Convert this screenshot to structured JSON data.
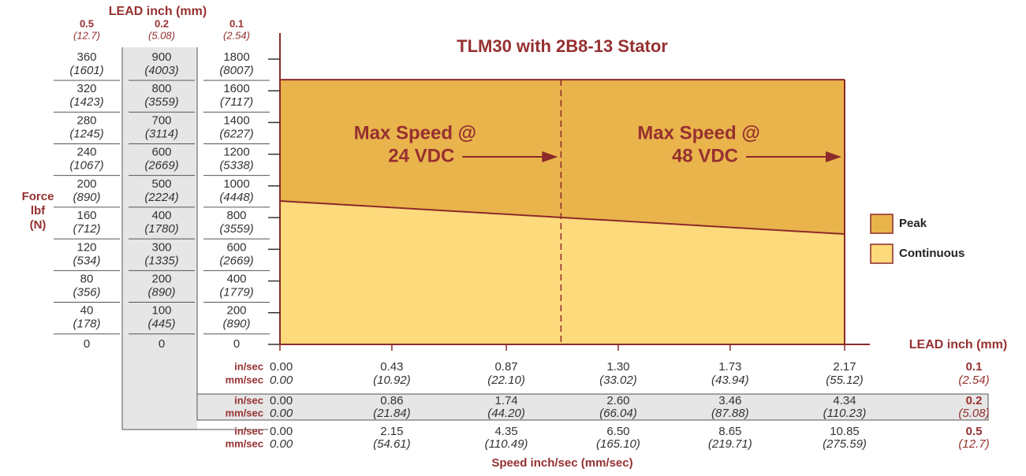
{
  "chart_data": {
    "type": "area",
    "title": "TLM30 with 2B8-13 Stator",
    "y_label": [
      "Force",
      "lbf",
      "(N)"
    ],
    "y_lead_header": "LEAD  inch (mm)",
    "ylim": [
      0,
      1800
    ],
    "yticks": [
      0,
      200,
      400,
      600,
      800,
      1000,
      1200,
      1400,
      1600,
      1800
    ],
    "y_columns": [
      {
        "lead": "0.5",
        "lead_mm": "(12.7)",
        "lbf": [
          "0",
          "40",
          "80",
          "120",
          "160",
          "200",
          "240",
          "280",
          "320",
          "360"
        ],
        "n": [
          null,
          "(178)",
          "(356)",
          "(534)",
          "(712)",
          "(890)",
          "(1067)",
          "(1245)",
          "(1423)",
          "(1601)"
        ]
      },
      {
        "lead": "0.2",
        "lead_mm": "(5.08)",
        "lbf": [
          "0",
          "100",
          "200",
          "300",
          "400",
          "500",
          "600",
          "700",
          "800",
          "900"
        ],
        "n": [
          null,
          "(445)",
          "(890)",
          "(1335)",
          "(1780)",
          "(2224)",
          "(2669)",
          "(3114)",
          "(3559)",
          "(4003)"
        ]
      },
      {
        "lead": "0.1",
        "lead_mm": "(2.54)",
        "n": [
          null,
          "(890)",
          "(1779)",
          "(2669)",
          "(3559)",
          "(4448)",
          "(5338)",
          "(6227)",
          "(7117)",
          "(8007)"
        ]
      }
    ],
    "xlim": [
      0,
      2.17
    ],
    "xticks": [
      {
        "value": 0,
        "label": "0.00"
      },
      {
        "value": 0.43,
        "label": "0.43"
      },
      {
        "value": 0.87,
        "label": "0.87"
      },
      {
        "value": 1.3,
        "label": "1.30"
      },
      {
        "value": 1.73,
        "label": "1.73"
      },
      {
        "value": 2.17,
        "label": "2.17"
      }
    ],
    "x_rows": [
      {
        "unit_in": "in/sec",
        "unit_mm": "mm/sec",
        "lead": "0.1",
        "lead_mm": "(2.54)",
        "mm": [
          "0.00",
          "(10.92)",
          "(22.10)",
          "(33.02)",
          "(43.94)",
          "(55.12)"
        ]
      },
      {
        "unit_in": "in/sec",
        "unit_mm": "mm/sec",
        "lead": "0.2",
        "lead_mm": "(5.08)",
        "in": [
          "0.00",
          "0.86",
          "1.74",
          "2.60",
          "3.46",
          "4.34"
        ],
        "mm": [
          "0.00",
          "(21.84)",
          "(44.20)",
          "(66.04)",
          "(87.88)",
          "(110.23)"
        ]
      },
      {
        "unit_in": "in/sec",
        "unit_mm": "mm/sec",
        "lead": "0.5",
        "lead_mm": "(12.7)",
        "in": [
          "0.00",
          "2.15",
          "4.35",
          "6.50",
          "8.65",
          "10.85"
        ],
        "mm": [
          "0.00",
          "(54.61)",
          "(110.49)",
          "(165.10)",
          "(219.71)",
          "(275.59)"
        ]
      }
    ],
    "x_lead_header": "LEAD inch (mm)",
    "x_label": "Speed inch/sec (mm/sec)",
    "series": [
      {
        "name": "Peak",
        "color": "#e9b44c",
        "x": [
          0,
          2.17
        ],
        "values": [
          1670,
          1670
        ]
      },
      {
        "name": "Continuous",
        "color": "#fdda7c",
        "x": [
          0,
          2.17
        ],
        "values": [
          905,
          696
        ]
      }
    ],
    "annotations": [
      {
        "x": 1.08,
        "lines": [
          "Max Speed @",
          "24 VDC"
        ]
      },
      {
        "x": 2.17,
        "lines": [
          "Max Speed @",
          "48 VDC"
        ]
      }
    ]
  }
}
